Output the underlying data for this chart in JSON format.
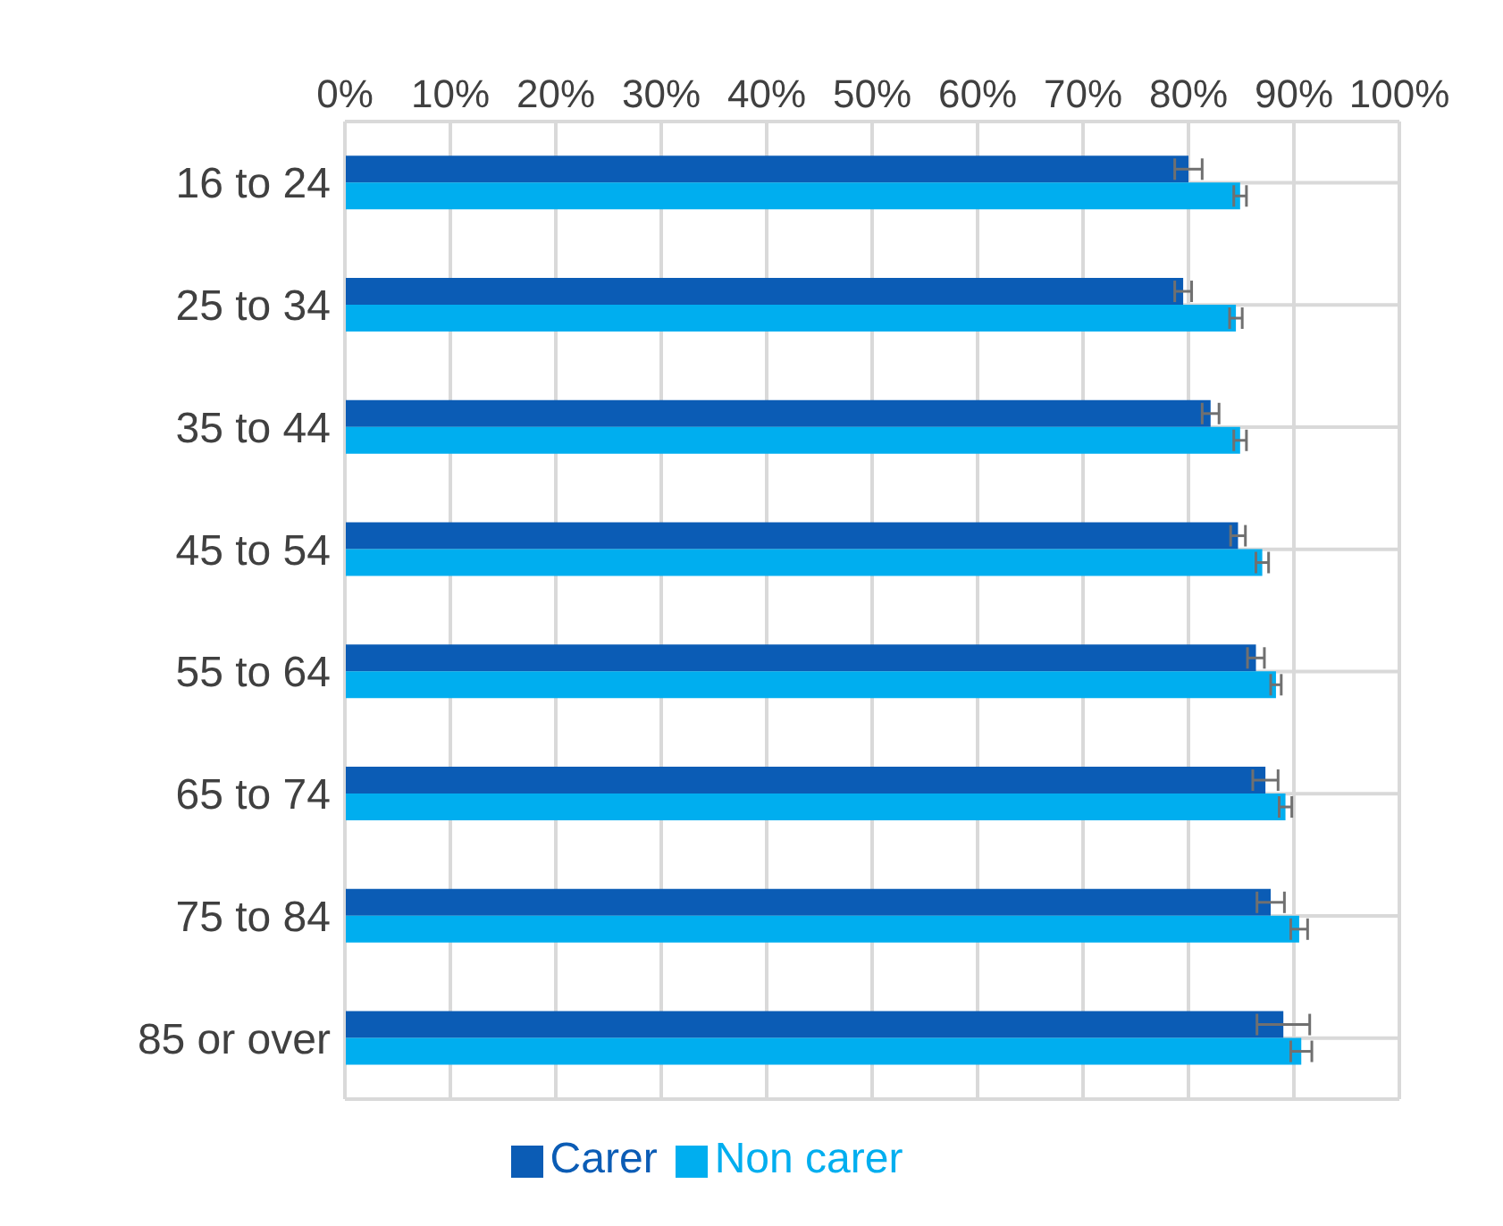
{
  "chart_data": {
    "type": "bar",
    "orientation": "horizontal",
    "categories": [
      "16 to 24",
      "25 to 34",
      "35 to 44",
      "45 to 54",
      "55 to 64",
      "65 to 74",
      "75 to 84",
      "85 or over"
    ],
    "series": [
      {
        "name": "Carer",
        "color": "#0b5cb5",
        "values": [
          80.0,
          79.5,
          82.1,
          84.7,
          86.4,
          87.3,
          87.8,
          89.0
        ],
        "errors": [
          1.3,
          0.8,
          0.8,
          0.7,
          0.8,
          1.2,
          1.3,
          2.5
        ]
      },
      {
        "name": "Non carer",
        "color": "#00aeef",
        "values": [
          84.9,
          84.5,
          84.9,
          87.0,
          88.3,
          89.2,
          90.5,
          90.7
        ],
        "errors": [
          0.6,
          0.6,
          0.6,
          0.6,
          0.5,
          0.6,
          0.8,
          1.0
        ]
      }
    ],
    "xlim": [
      0,
      100
    ],
    "xticks": [
      {
        "value": 0,
        "label": "0%"
      },
      {
        "value": 10,
        "label": "10%"
      },
      {
        "value": 20,
        "label": "20%"
      },
      {
        "value": 30,
        "label": "30%"
      },
      {
        "value": 40,
        "label": "40%"
      },
      {
        "value": 50,
        "label": "50%"
      },
      {
        "value": 60,
        "label": "60%"
      },
      {
        "value": 70,
        "label": "70%"
      },
      {
        "value": 80,
        "label": "80%"
      },
      {
        "value": 90,
        "label": "90%"
      },
      {
        "value": 100,
        "label": "100%"
      }
    ],
    "grid": true,
    "legend": "bottom"
  }
}
